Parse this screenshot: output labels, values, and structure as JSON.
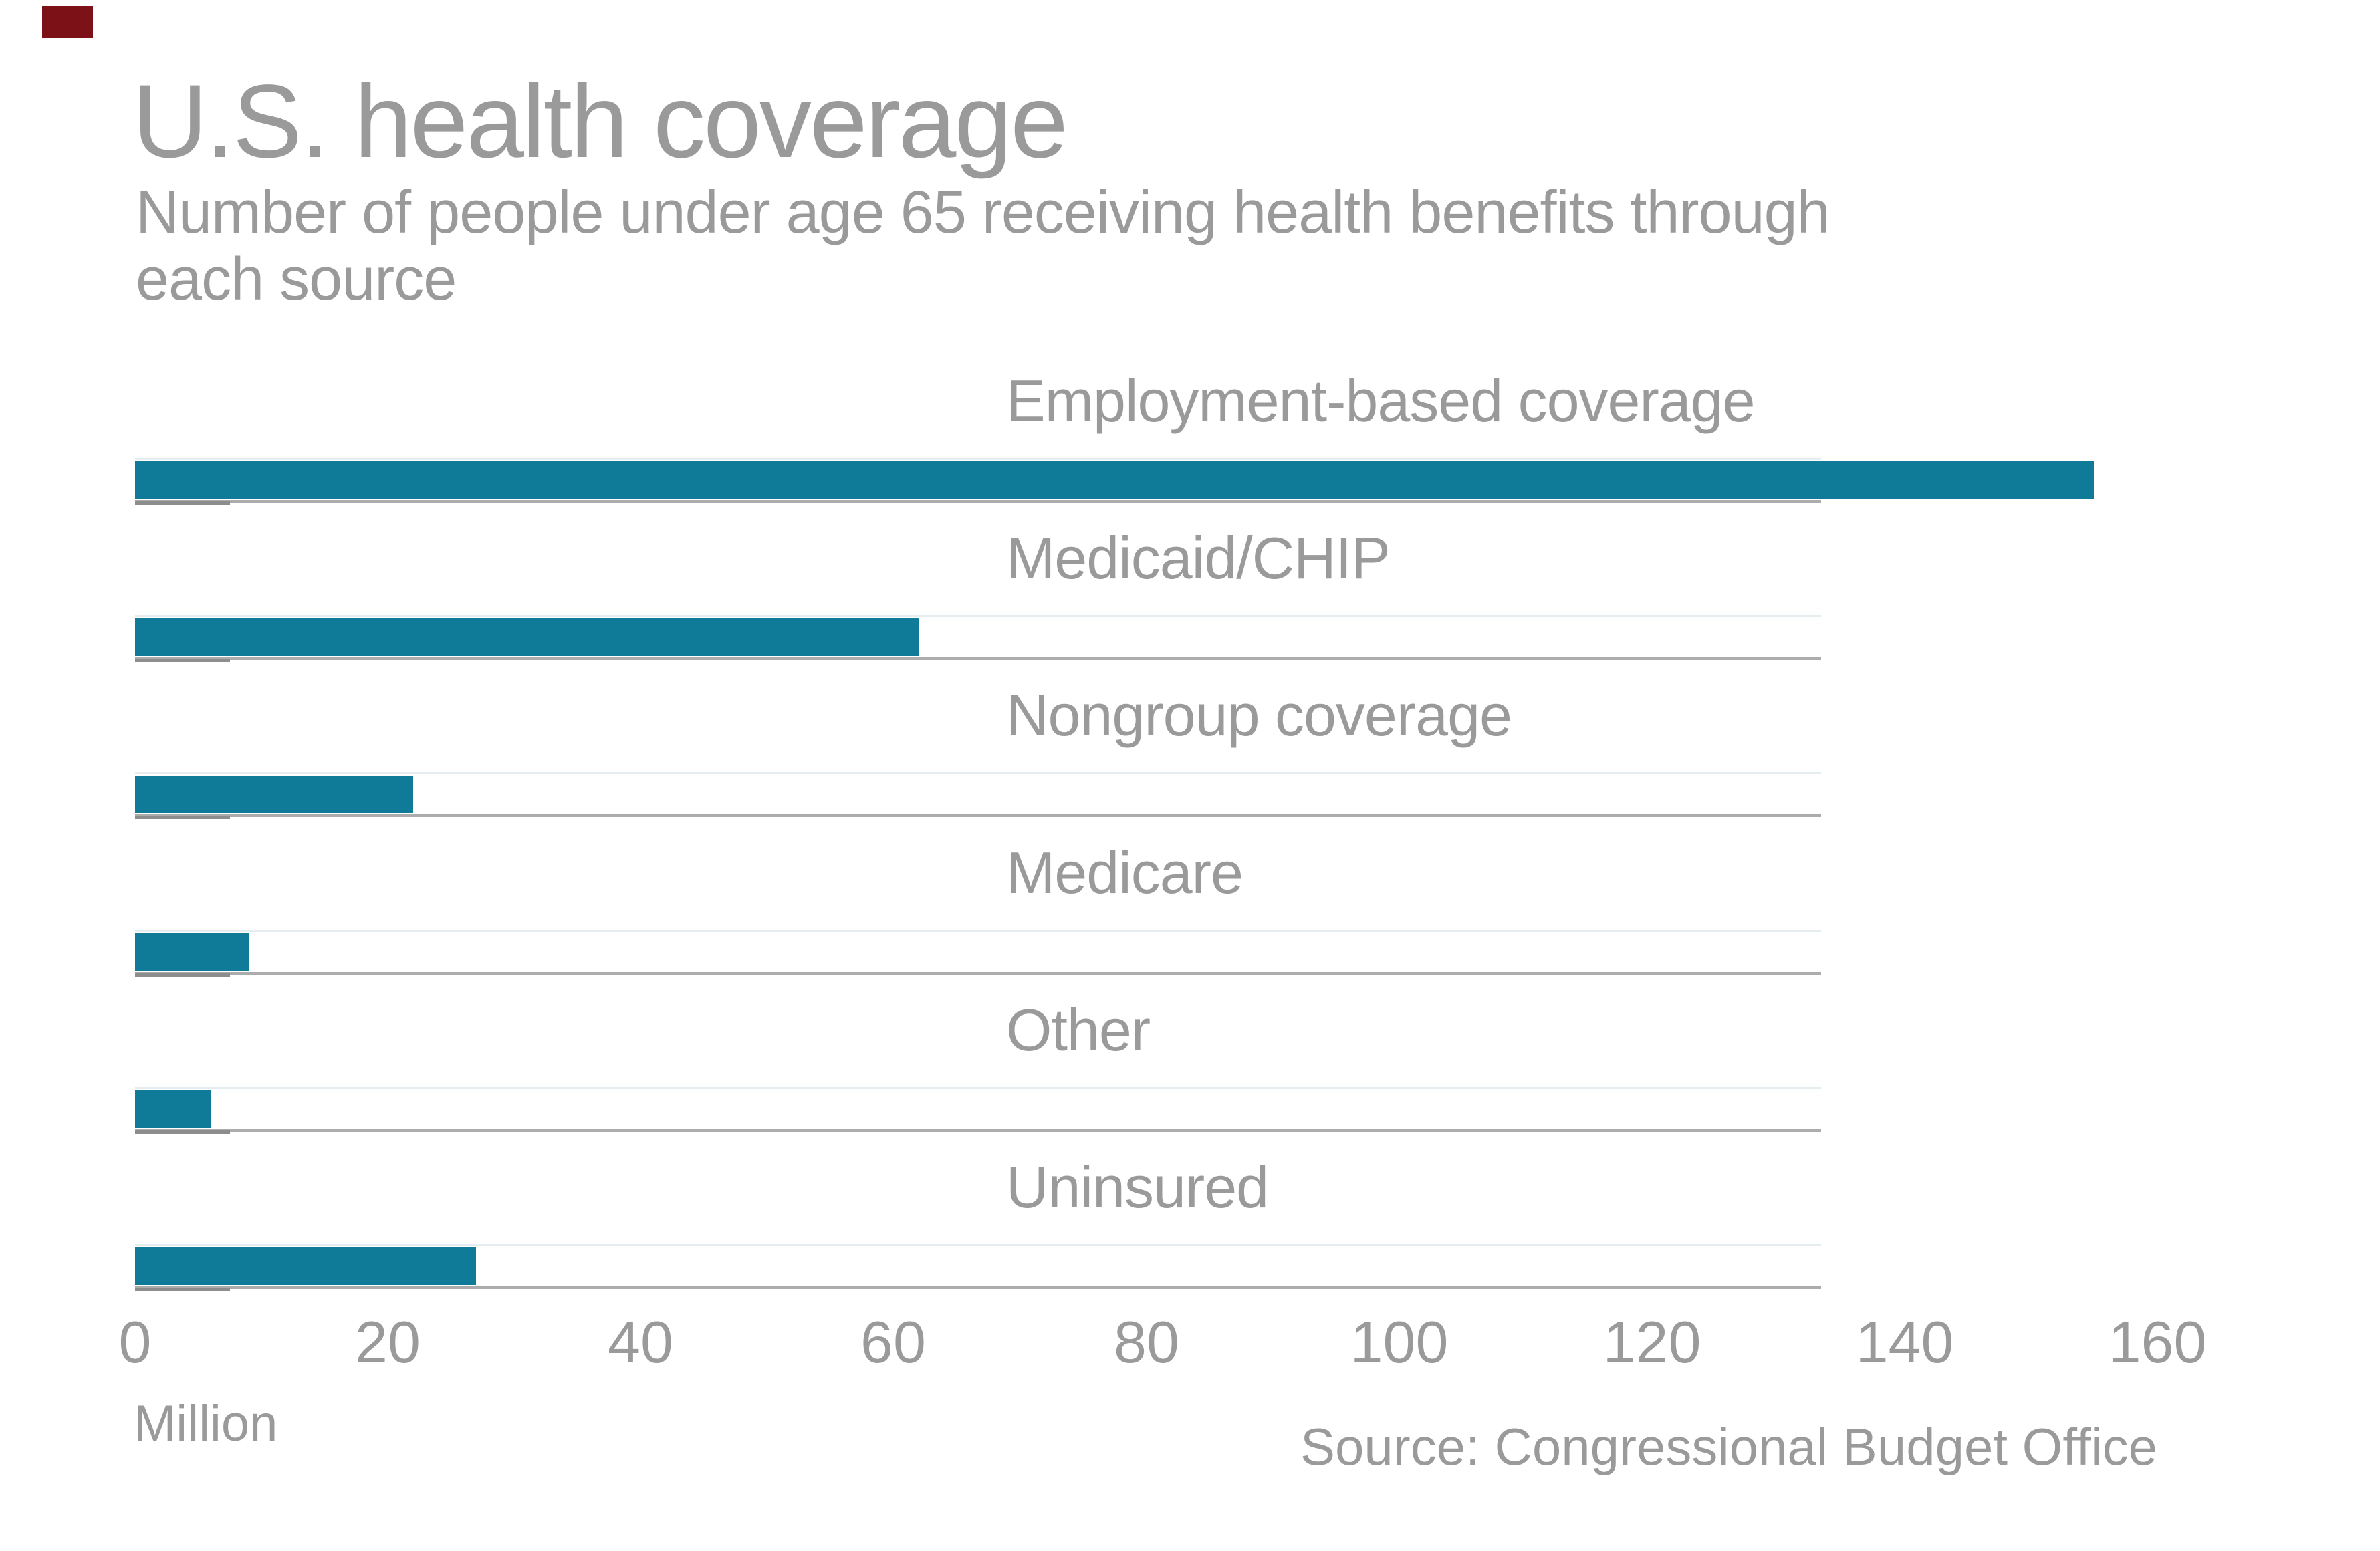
{
  "chart_data": {
    "type": "bar",
    "orientation": "horizontal",
    "title": "U.S. health coverage",
    "subtitle": "Number of people under age 65 receiving health benefits through each source",
    "subtitle_lines": [
      "Number of people under age 65 receiving health benefits through",
      "each source"
    ],
    "categories": [
      "Employment-based coverage",
      "Medicaid/CHIP",
      "Nongroup coverage",
      "Medicare",
      "Other",
      "Uninsured"
    ],
    "values": [
      155,
      62,
      22,
      9,
      6,
      27
    ],
    "unit_label": "Million",
    "source": "Source: Congressional Budget Office",
    "xlabel": "",
    "ylabel": "",
    "xlim": [
      0,
      160
    ],
    "xticks": [
      0,
      20,
      40,
      60,
      80,
      100,
      120,
      140,
      160
    ],
    "grid": "row-separator-lines",
    "legend": "none",
    "bar_color": "#107a99",
    "text_color": "#9a9a9a",
    "separator_color": "#acacac",
    "separator_dark_color": "#8d8d8d",
    "corner_mark_color": "#7d1118"
  }
}
